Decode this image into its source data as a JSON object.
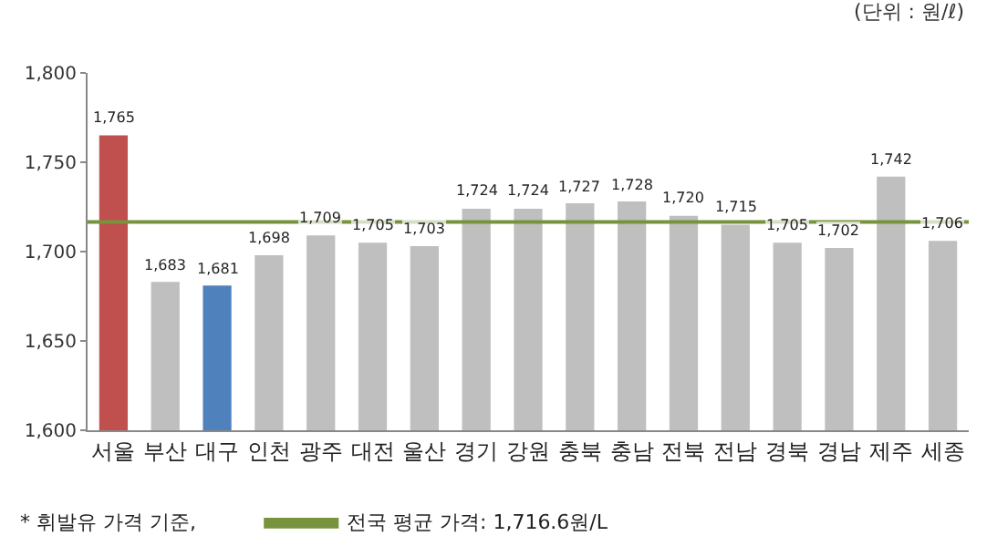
{
  "chart_data": {
    "type": "bar",
    "categories": [
      "서울",
      "부산",
      "대구",
      "인천",
      "광주",
      "대전",
      "울산",
      "경기",
      "강원",
      "충북",
      "충남",
      "전북",
      "전남",
      "경북",
      "경남",
      "제주",
      "세종"
    ],
    "values": [
      1765,
      1683,
      1681,
      1698,
      1709,
      1705,
      1703,
      1724,
      1724,
      1727,
      1728,
      1720,
      1715,
      1705,
      1702,
      1742,
      1706
    ],
    "colors": [
      "#c0504d",
      "#bfbfbf",
      "#4f81bd",
      "#bfbfbf",
      "#bfbfbf",
      "#bfbfbf",
      "#bfbfbf",
      "#bfbfbf",
      "#bfbfbf",
      "#bfbfbf",
      "#bfbfbf",
      "#bfbfbf",
      "#bfbfbf",
      "#bfbfbf",
      "#bfbfbf",
      "#bfbfbf",
      "#bfbfbf"
    ],
    "ylim": [
      1600,
      1800
    ],
    "yticks": [
      {
        "value": 1600,
        "label": "1,600"
      },
      {
        "value": 1650,
        "label": "1,650"
      },
      {
        "value": 1700,
        "label": "1,700"
      },
      {
        "value": 1750,
        "label": "1,750"
      },
      {
        "value": 1800,
        "label": "1,800"
      }
    ],
    "value_labels": [
      "1,765",
      "1,683",
      "1,681",
      "1,698",
      "1,709",
      "1,705",
      "1,703",
      "1,724",
      "1,724",
      "1,727",
      "1,728",
      "1,720",
      "1,715",
      "1,705",
      "1,702",
      "1,742",
      "1,706"
    ],
    "grid": false,
    "legend": "bottom",
    "ref_lines": [
      {
        "axis": "y",
        "value": 1716.6,
        "label": "전국 평균 가격: 1,716.6원/L",
        "color": "#77933c"
      }
    ],
    "annotations": [
      "(단위 : 원/ℓ)",
      "* 휘발유 가격 기준,"
    ]
  }
}
